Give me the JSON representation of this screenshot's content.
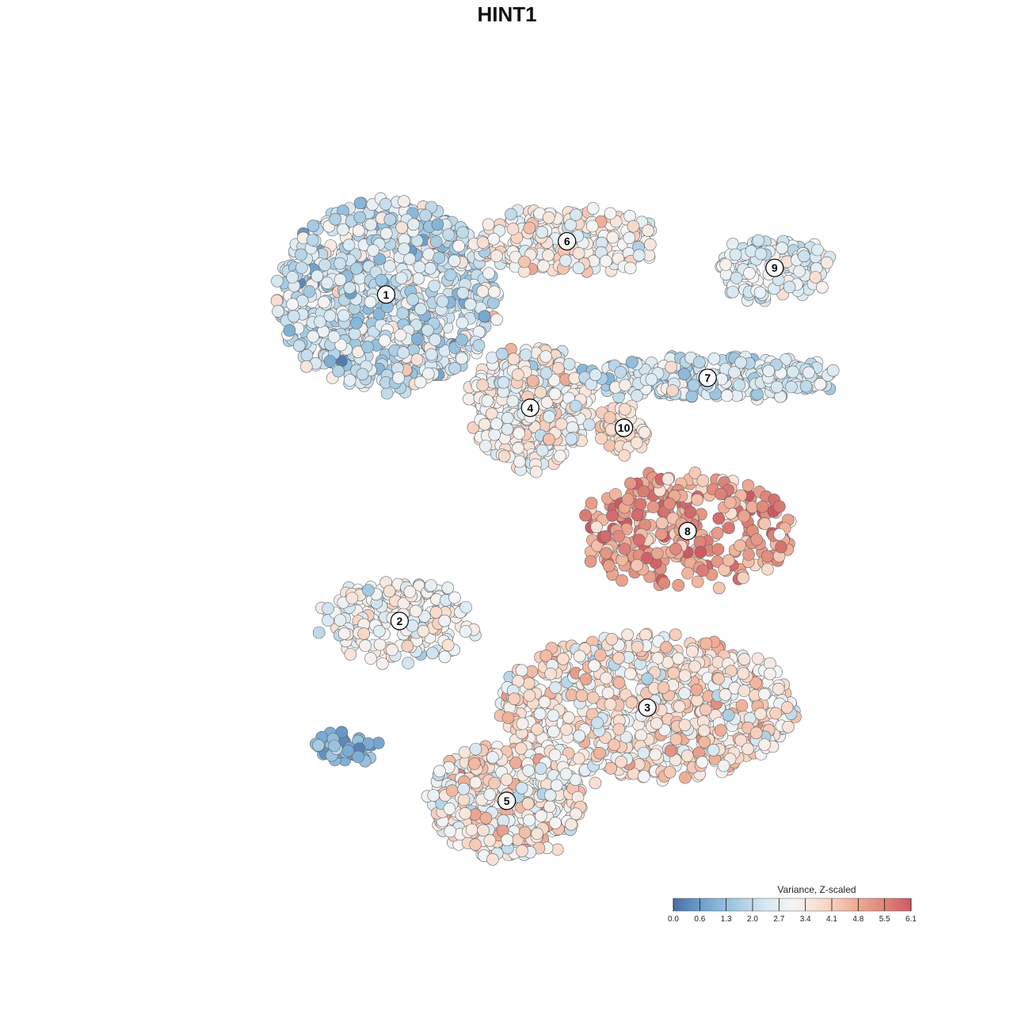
{
  "chart_data": {
    "type": "scatter",
    "title": "HINT1",
    "subtitle": "",
    "xlabel": "",
    "ylabel": "",
    "grid": false,
    "legend": {
      "title": "Variance, Z-scaled",
      "placement": "bottom-right",
      "ticks": [
        "0.0",
        "0.6",
        "1.3",
        "2.0",
        "2.7",
        "3.4",
        "4.1",
        "4.8",
        "5.5",
        "6.1"
      ],
      "range": [
        0.0,
        6.1
      ],
      "colors": [
        "#4a6fa5",
        "#6fa3cf",
        "#9fc7e0",
        "#d3e6f0",
        "#f5f5f5",
        "#f8dccc",
        "#f1b39b",
        "#e08a7c",
        "#cd5a63"
      ]
    },
    "clusters": [
      {
        "label": "1",
        "cx": 3.4,
        "cy": 7.6,
        "rx": 1.55,
        "ry": 1.35,
        "mean": 2.3,
        "sd": 0.7,
        "n": 900
      },
      {
        "label": "6",
        "cx": 6.1,
        "cy": 8.4,
        "rx": 1.3,
        "ry": 0.45,
        "mean": 3.1,
        "sd": 0.6,
        "n": 260
      },
      {
        "label": "9",
        "cx": 9.2,
        "cy": 8.0,
        "rx": 0.75,
        "ry": 0.45,
        "mean": 2.7,
        "sd": 0.5,
        "n": 150
      },
      {
        "label": "4",
        "cx": 5.55,
        "cy": 5.9,
        "rx": 0.85,
        "ry": 0.85,
        "mean": 3.2,
        "sd": 0.6,
        "n": 380
      },
      {
        "label": "7",
        "cx": 8.2,
        "cy": 6.35,
        "rx": 1.9,
        "ry": 0.3,
        "mean": 2.4,
        "sd": 0.5,
        "n": 300
      },
      {
        "label": "10",
        "cx": 6.95,
        "cy": 5.6,
        "rx": 0.35,
        "ry": 0.35,
        "mean": 3.8,
        "sd": 0.3,
        "n": 60
      },
      {
        "label": "8",
        "cx": 7.9,
        "cy": 4.05,
        "rx": 1.55,
        "ry": 0.8,
        "mean": 4.9,
        "sd": 0.7,
        "n": 300
      },
      {
        "label": "2",
        "cx": 3.6,
        "cy": 2.7,
        "rx": 1.1,
        "ry": 0.55,
        "mean": 3.0,
        "sd": 0.6,
        "n": 220
      },
      {
        "label": "3",
        "cx": 7.3,
        "cy": 1.4,
        "rx": 2.1,
        "ry": 1.05,
        "mean": 3.5,
        "sd": 0.7,
        "n": 720
      },
      {
        "label": "5",
        "cx": 5.2,
        "cy": 0.0,
        "rx": 1.1,
        "ry": 0.8,
        "mean": 3.4,
        "sd": 0.7,
        "n": 400
      }
    ],
    "outgroups": [
      {
        "cx": 2.8,
        "cy": 0.8,
        "rx": 0.45,
        "ry": 0.2,
        "mean": 1.0,
        "sd": 0.4,
        "n": 45
      }
    ],
    "xlim": [
      0,
      11
    ],
    "ylim": [
      -1,
      10
    ]
  }
}
